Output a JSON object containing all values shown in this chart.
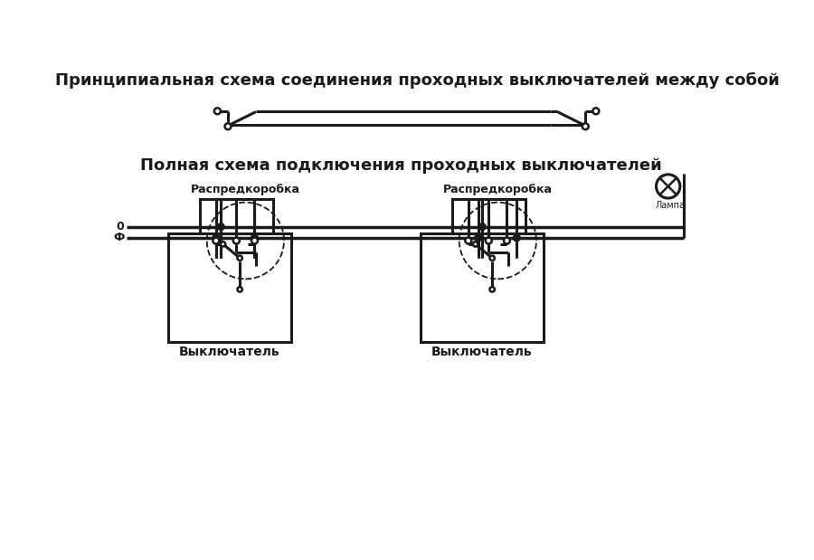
{
  "title1": "Принципиальная схема соединения проходных выключателей между собой",
  "title2": "Полная схема подключения проходных выключателей",
  "label_raspred": "Распредкоробка",
  "label_vykl": "Выключатель",
  "label_lampa": "Лампа",
  "label_0": "0",
  "label_phi": "Ф",
  "bg_color": "#ffffff",
  "lc": "#1a1a1a",
  "lw": 1.8,
  "lw2": 2.2,
  "dot_r": 5.0,
  "open_r": 4.5
}
